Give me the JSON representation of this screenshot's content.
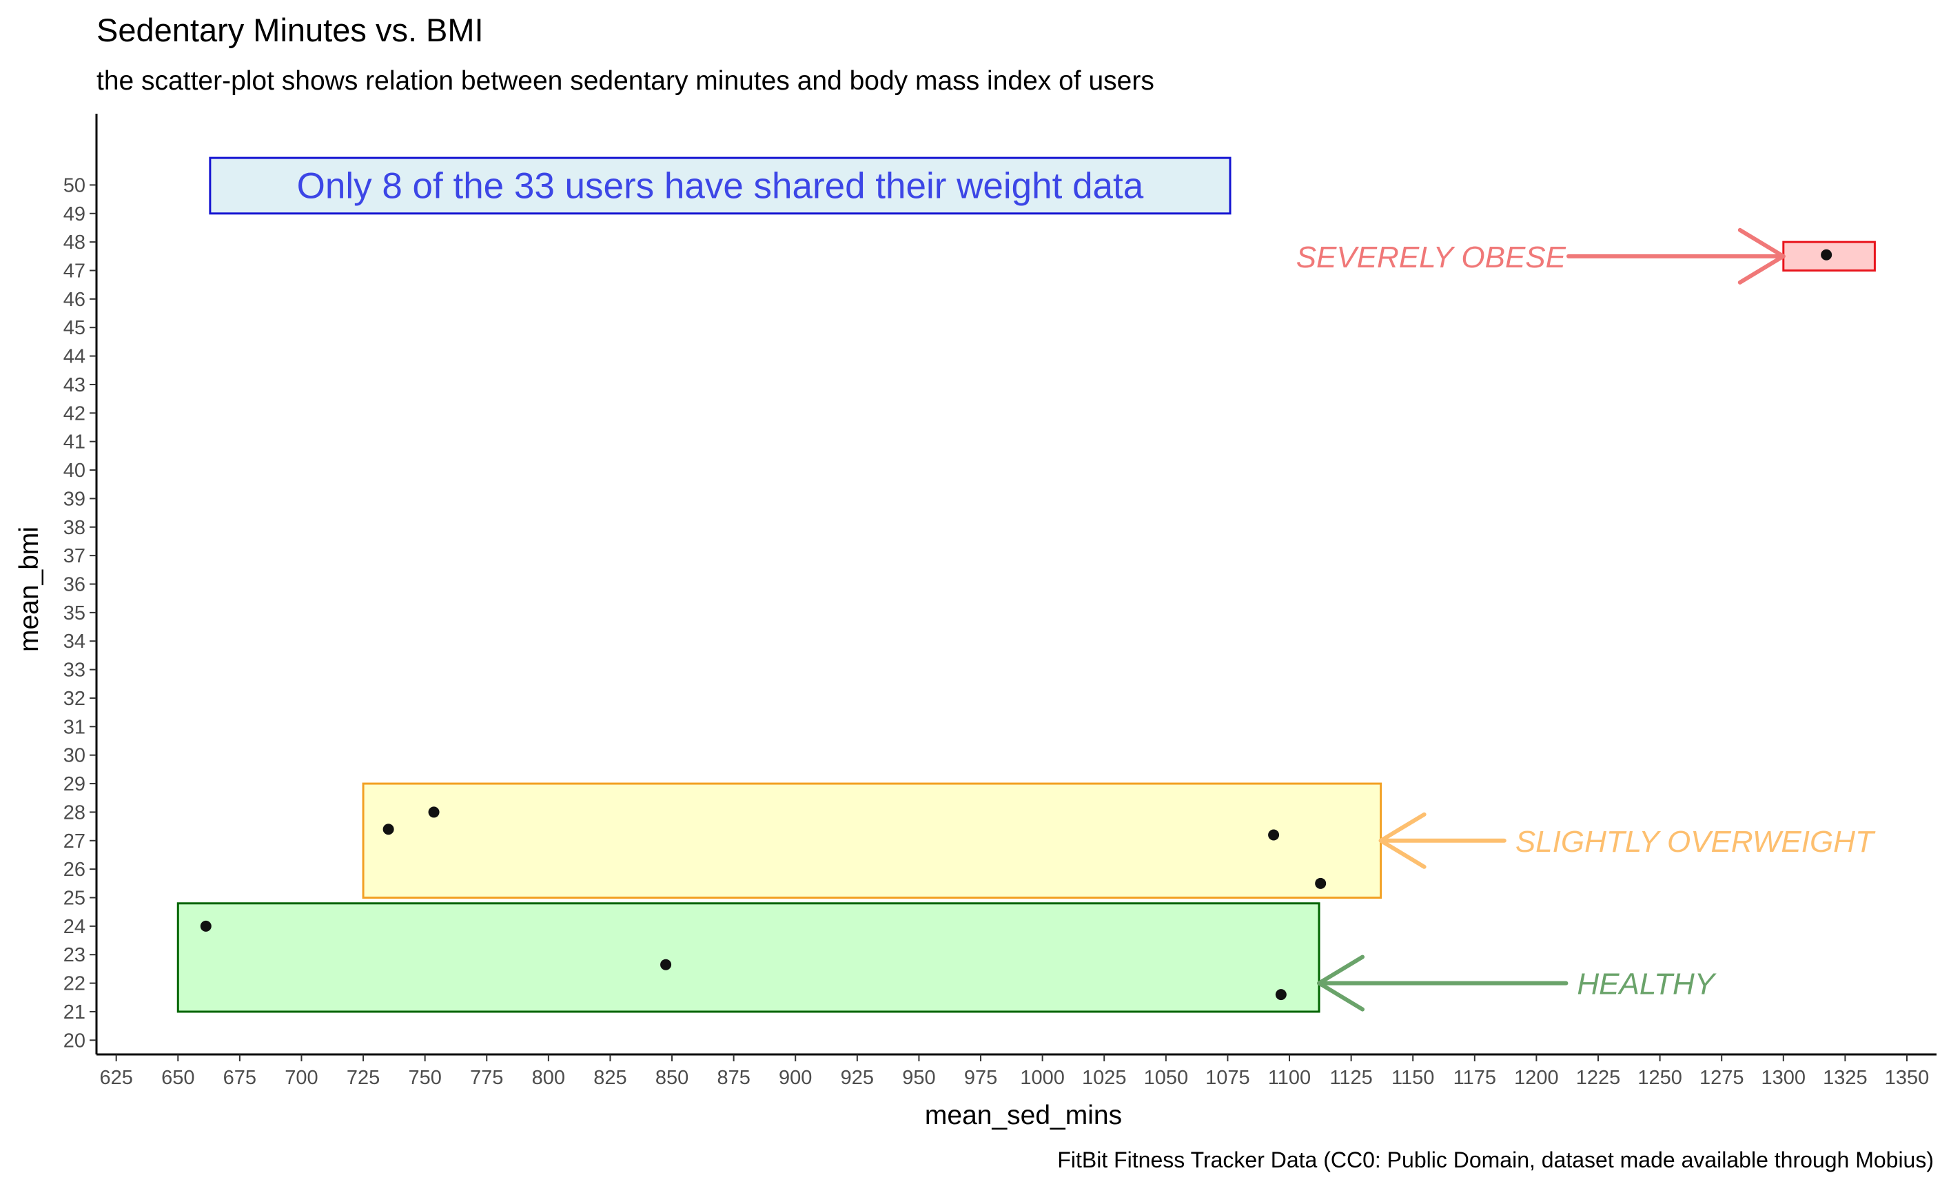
{
  "chart_data": {
    "type": "scatter",
    "title": "Sedentary Minutes vs. BMI",
    "subtitle": "the scatter-plot shows relation between sedentary minutes and body mass index of users",
    "xlabel": "mean_sed_mins",
    "ylabel": "mean_bmi",
    "caption": "FitBit Fitness Tracker Data (CC0: Public Domain, dataset made available through Mobius)",
    "xlim": [
      617,
      1362
    ],
    "ylim": [
      19.5,
      52.5
    ],
    "x_ticks": [
      625,
      650,
      675,
      700,
      725,
      750,
      775,
      800,
      825,
      850,
      875,
      900,
      925,
      950,
      975,
      1000,
      1025,
      1050,
      1075,
      1100,
      1125,
      1150,
      1175,
      1200,
      1225,
      1250,
      1275,
      1300,
      1325,
      1350
    ],
    "y_ticks": [
      20,
      21,
      22,
      23,
      24,
      25,
      26,
      27,
      28,
      29,
      30,
      31,
      32,
      33,
      34,
      35,
      36,
      37,
      38,
      39,
      40,
      41,
      42,
      43,
      44,
      45,
      46,
      47,
      48,
      49,
      50
    ],
    "grid": false,
    "legend": "none",
    "points": [
      {
        "x": 661.3,
        "y": 24.0
      },
      {
        "x": 735.2,
        "y": 27.4
      },
      {
        "x": 753.6,
        "y": 28.0
      },
      {
        "x": 847.5,
        "y": 22.65
      },
      {
        "x": 1093.6,
        "y": 27.2
      },
      {
        "x": 1112.6,
        "y": 25.5
      },
      {
        "x": 1096.6,
        "y": 21.6
      },
      {
        "x": 1317.4,
        "y": 47.55
      }
    ],
    "point_color": "#111111",
    "zones": [
      {
        "label": "SEVERELY OBESE",
        "x0": 1300,
        "x1": 1337,
        "y0": 47.0,
        "y1": 48.0,
        "fill": "#ffcccc",
        "stroke": "#e8141c",
        "label_color": "#f07878",
        "arrow_color": "#f07878",
        "arrow_from": [
          1213,
          47.5
        ],
        "arrow_to": [
          1300,
          47.5
        ],
        "label_side": "left"
      },
      {
        "label": "SLIGHTLY OVERWEIGHT",
        "x0": 725,
        "x1": 1137,
        "y0": 25.0,
        "y1": 29.0,
        "fill": "#ffffcc",
        "stroke": "#f2a023",
        "label_color": "#fdbf6f",
        "arrow_color": "#fdbf6f",
        "arrow_from": [
          1187,
          27.0
        ],
        "arrow_to": [
          1137,
          27.0
        ],
        "label_side": "right"
      },
      {
        "label": "HEALTHY",
        "x0": 650,
        "x1": 1112,
        "y0": 21.0,
        "y1": 24.8,
        "fill": "#ccffcc",
        "stroke": "#006400",
        "label_color": "#6aa36a",
        "arrow_color": "#6aa36a",
        "arrow_from": [
          1212,
          22.0
        ],
        "arrow_to": [
          1112,
          22.0
        ],
        "label_side": "right"
      }
    ],
    "annotation": {
      "text": "Only 8 of the 33 users have shared their weight data",
      "x0": 663,
      "x1": 1076,
      "y0": 49.0,
      "y1": 50.95,
      "fill": "#dff0f5",
      "stroke": "#1414d2",
      "text_color": "#3c46e6"
    }
  }
}
